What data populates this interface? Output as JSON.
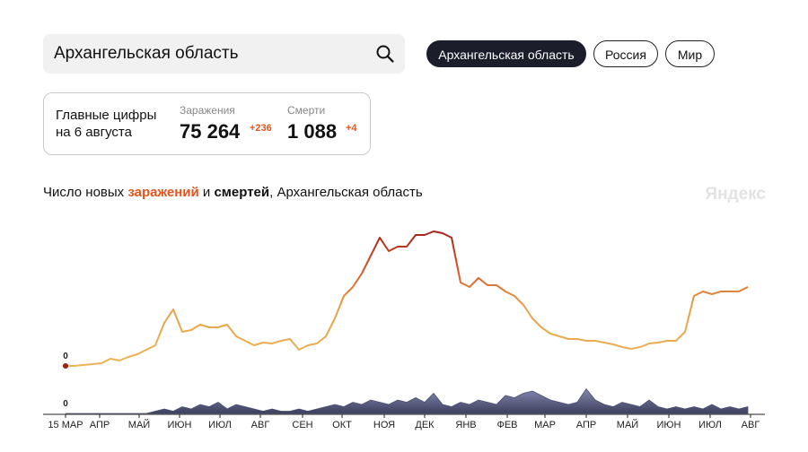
{
  "search": {
    "query": "Архангельская область"
  },
  "tabs": [
    "Архангельская область",
    "Россия",
    "Мир"
  ],
  "summary": {
    "title_line1": "Главные цифры",
    "title_line2": "на 6 августа",
    "infections": {
      "label": "Заражения",
      "total": "75 264",
      "delta": "+236"
    },
    "deaths": {
      "label": "Смерти",
      "total": "1 088",
      "delta": "+4"
    }
  },
  "brand": "Яндекс",
  "x_axis": {
    "labels": [
      "15 МАР",
      "АПР",
      "МАЙ",
      "ИЮН",
      "ИЮЛ",
      "АВГ",
      "СЕН",
      "ОКТ",
      "НОЯ",
      "ДЕК",
      "ЯНВ",
      "ФЕВ",
      "МАР",
      "АПР",
      "МАЙ",
      "ИЮН",
      "ИЮЛ",
      "АВГ"
    ]
  },
  "chart_data": [
    {
      "type": "line",
      "title_parts": [
        "Число новых ",
        "заражений",
        " и ",
        "смертей",
        ", Архангельская область"
      ],
      "ylim": [
        0,
        300
      ],
      "yticks": [
        0
      ],
      "values": [
        0,
        0,
        2,
        4,
        6,
        16,
        12,
        20,
        26,
        36,
        46,
        96,
        126,
        76,
        80,
        92,
        86,
        86,
        92,
        66,
        56,
        46,
        52,
        50,
        56,
        60,
        36,
        46,
        50,
        66,
        106,
        156,
        176,
        206,
        246,
        286,
        256,
        266,
        266,
        292,
        292,
        300,
        296,
        286,
        186,
        176,
        196,
        180,
        180,
        166,
        156,
        136,
        106,
        86,
        72,
        66,
        60,
        60,
        56,
        56,
        52,
        48,
        42,
        38,
        42,
        50,
        52,
        56,
        56,
        76,
        156,
        166,
        160,
        166,
        166,
        166,
        176
      ]
    },
    {
      "type": "area",
      "color": "#4b4f72",
      "ylim": [
        0,
        12
      ],
      "yticks": [
        0
      ],
      "values": [
        0,
        0,
        0,
        0,
        0,
        0,
        0,
        0,
        0,
        0,
        1,
        2,
        1,
        3,
        2,
        4,
        3,
        5,
        2,
        4,
        3,
        2,
        1,
        2,
        1,
        1,
        2,
        1,
        2,
        3,
        4,
        3,
        5,
        4,
        6,
        5,
        4,
        6,
        5,
        7,
        5,
        9,
        4,
        3,
        5,
        4,
        6,
        5,
        4,
        8,
        7,
        9,
        10,
        8,
        6,
        5,
        4,
        5,
        11,
        6,
        4,
        3,
        5,
        4,
        3,
        6,
        3,
        2,
        3,
        2,
        3,
        2,
        4,
        2,
        3,
        2,
        3
      ]
    }
  ]
}
